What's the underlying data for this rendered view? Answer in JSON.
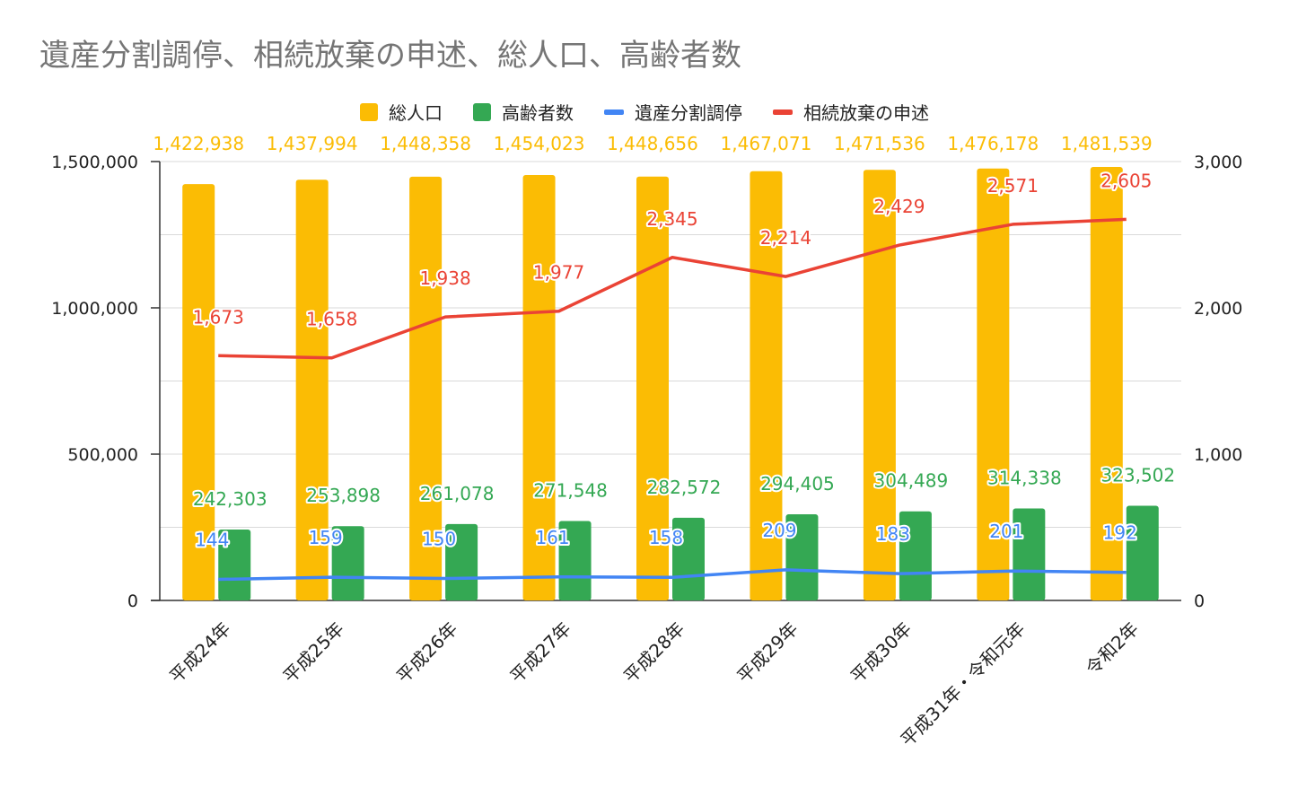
{
  "title": "遺産分割調停、相続放棄の申述、総人口、高齢者数",
  "colors": {
    "total_population": "#FBBC04",
    "elderly": "#34A853",
    "mediation": "#4285F4",
    "renunciation": "#EA4335",
    "grid": "#d9d9d9",
    "axis": "#333333",
    "text": "#222222"
  },
  "legend": [
    {
      "label": "総人口",
      "shape": "box",
      "color_key": "total_population"
    },
    {
      "label": "高齢者数",
      "shape": "box",
      "color_key": "elderly"
    },
    {
      "label": "遺産分割調停",
      "shape": "line",
      "color_key": "mediation"
    },
    {
      "label": "相続放棄の申述",
      "shape": "line",
      "color_key": "renunciation"
    }
  ],
  "chart_data": {
    "type": "bar",
    "title": "遺産分割調停、相続放棄の申述、総人口、高齢者数",
    "categories": [
      "平成24年",
      "平成25年",
      "平成26年",
      "平成27年",
      "平成28年",
      "平成29年",
      "平成30年",
      "平成31年・令和元年",
      "令和2年"
    ],
    "left_axis": {
      "ylim": [
        0,
        1500000
      ],
      "ticks": [
        0,
        500000,
        1000000,
        1500000
      ],
      "tick_labels": [
        "0",
        "500,000",
        "1,000,000",
        "1,500,000"
      ]
    },
    "right_axis": {
      "ylim": [
        0,
        3000
      ],
      "ticks": [
        0,
        1000,
        2000,
        3000
      ],
      "tick_labels": [
        "0",
        "1,000",
        "2,000",
        "3,000"
      ]
    },
    "grid": true,
    "legend_position": "top",
    "series": [
      {
        "name": "総人口",
        "kind": "bar",
        "axis": "left",
        "color_key": "total_population",
        "values": [
          1422938,
          1437994,
          1448358,
          1454023,
          1448656,
          1467071,
          1471536,
          1476178,
          1481539
        ],
        "labels": [
          "1,422,938",
          "1,437,994",
          "1,448,358",
          "1,454,023",
          "1,448,656",
          "1,467,071",
          "1,471,536",
          "1,476,178",
          "1,481,539"
        ]
      },
      {
        "name": "高齢者数",
        "kind": "bar",
        "axis": "left",
        "color_key": "elderly",
        "values": [
          242303,
          253898,
          261078,
          271548,
          282572,
          294405,
          304489,
          314338,
          323502
        ],
        "labels": [
          "242,303",
          "253,898",
          "261,078",
          "271,548",
          "282,572",
          "294,405",
          "304,489",
          "314,338",
          "323,502"
        ]
      },
      {
        "name": "遺産分割調停",
        "kind": "line",
        "axis": "right",
        "color_key": "mediation",
        "values": [
          144,
          159,
          150,
          161,
          158,
          209,
          183,
          201,
          192
        ],
        "labels": [
          "144",
          "159",
          "150",
          "161",
          "158",
          "209",
          "183",
          "201",
          "192"
        ]
      },
      {
        "name": "相続放棄の申述",
        "kind": "line",
        "axis": "right",
        "color_key": "renunciation",
        "values": [
          1673,
          1658,
          1938,
          1977,
          2345,
          2214,
          2429,
          2571,
          2605
        ],
        "labels": [
          "1,673",
          "1,658",
          "1,938",
          "1,977",
          "2,345",
          "2,214",
          "2,429",
          "2,571",
          "2,605"
        ]
      }
    ]
  }
}
